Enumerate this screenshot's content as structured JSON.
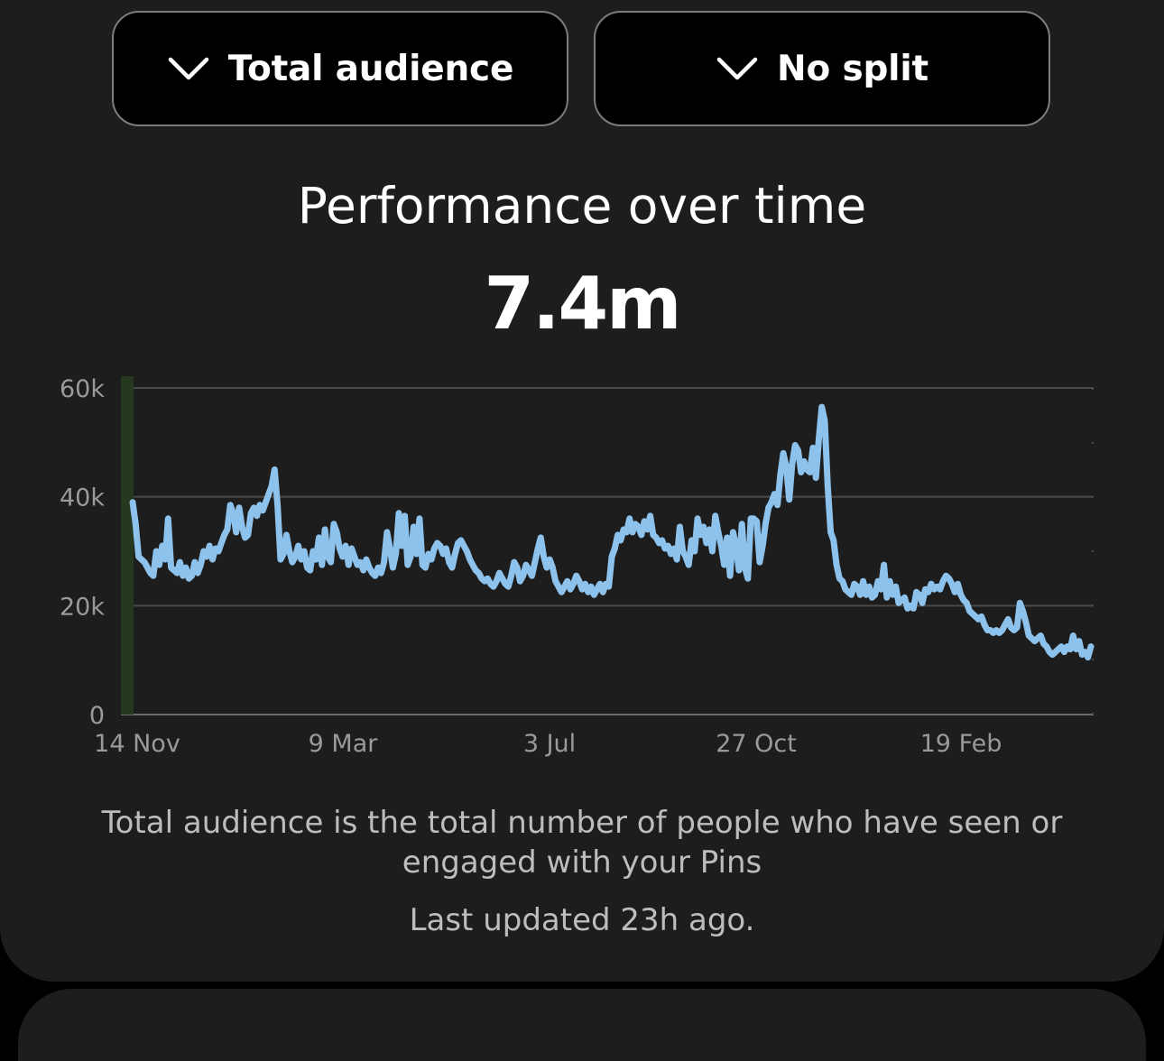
{
  "filters": {
    "audience_label": "Total audience",
    "split_label": "No split",
    "chevron_icon": "chevron-down-icon"
  },
  "summary": {
    "title": "Performance over time",
    "value": "7.4m"
  },
  "chart_data": {
    "type": "line",
    "title": "",
    "xlabel": "",
    "ylabel": "",
    "ylim": [
      0,
      60000
    ],
    "yticks": [
      0,
      20000,
      40000,
      60000
    ],
    "ytick_labels": [
      "0",
      "20k",
      "40k",
      "60k"
    ],
    "xtick_labels": [
      "14 Nov",
      "9 Mar",
      "3 Jul",
      "27 Oct",
      "19 Feb"
    ],
    "grid": true,
    "line_color": "#8dc2ec",
    "highlight_color": "#26381f",
    "series": [
      {
        "values": [
          39000,
          35000,
          29000,
          28500,
          28000,
          27000,
          26000,
          25500,
          30000,
          27500,
          31000,
          28500,
          36000,
          27000,
          26500,
          26000,
          28000,
          25500,
          27000,
          25000,
          25500,
          28000,
          26000,
          27500,
          30000,
          29000,
          31000,
          28500,
          30500,
          30000,
          31500,
          33000,
          34000,
          38500,
          37000,
          33500,
          38000,
          34500,
          32500,
          33000,
          37000,
          38000,
          36500,
          38500,
          37500,
          39000,
          40500,
          42000,
          45000,
          38500,
          28500,
          29500,
          33000,
          30000,
          28000,
          29000,
          31000,
          28500,
          30000,
          27000,
          26500,
          30000,
          28500,
          32500,
          27500,
          34000,
          29000,
          28000,
          35000,
          33500,
          30500,
          29000,
          31000,
          27500,
          30500,
          29000,
          27500,
          28000,
          26500,
          28500,
          27000,
          26000,
          25500,
          27000,
          26000,
          28000,
          33500,
          30500,
          27000,
          29500,
          37000,
          31000,
          36500,
          27500,
          29000,
          34500,
          29500,
          36000,
          27500,
          27000,
          29500,
          28500,
          30500,
          31500,
          31000,
          29500,
          30500,
          28000,
          27000,
          29500,
          31500,
          32000,
          31000,
          30000,
          28500,
          27500,
          26500,
          26000,
          25000,
          24500,
          25000,
          24000,
          23500,
          24500,
          26000,
          25000,
          24000,
          23500,
          25500,
          28000,
          27000,
          24500,
          25500,
          27500,
          26500,
          25500,
          28000,
          30500,
          32500,
          29000,
          27000,
          28500,
          27000,
          24500,
          23500,
          22500,
          23500,
          24500,
          23000,
          24000,
          25500,
          24500,
          23000,
          24000,
          22500,
          23500,
          22000,
          23000,
          24000,
          22500,
          24000,
          23500,
          29000,
          30500,
          33000,
          32000,
          34000,
          33500,
          36000,
          33500,
          35000,
          34500,
          33000,
          35500,
          34000,
          36500,
          33000,
          32500,
          31500,
          32000,
          30500,
          31000,
          29500,
          30500,
          28500,
          34500,
          30000,
          29000,
          27500,
          32000,
          30000,
          36000,
          33000,
          34500,
          31500,
          34000,
          30000,
          36500,
          33500,
          31000,
          27500,
          32500,
          25500,
          33500,
          31000,
          26500,
          35000,
          27000,
          25000,
          36000,
          36000,
          35500,
          28000,
          31000,
          35000,
          38000,
          39000,
          40500,
          38500,
          44000,
          48000,
          45500,
          39500,
          46000,
          49500,
          48500,
          44500,
          46500,
          45000,
          44500,
          49000,
          43500,
          50500,
          56500,
          54000,
          42000,
          33500,
          32000,
          27500,
          25000,
          24500,
          23000,
          22500,
          22000,
          24000,
          23500,
          22000,
          24500,
          22000,
          23500,
          21500,
          22000,
          24500,
          23000,
          27500,
          21500,
          24500,
          22000,
          23500,
          20500,
          21000,
          21500,
          19500,
          20000,
          19500,
          22500,
          22000,
          20500,
          23000,
          22500,
          24000,
          23000,
          23500,
          23000,
          24500,
          25500,
          25000,
          24000,
          22500,
          24000,
          22000,
          21000,
          20500,
          19000,
          18500,
          18000,
          17500,
          18000,
          16500,
          15500,
          15500,
          15000,
          15500,
          15000,
          15500,
          16500,
          17500,
          16000,
          15500,
          16000,
          20500,
          19000,
          17000,
          14500,
          14000,
          13500,
          14000,
          14500,
          13000,
          12500,
          11500,
          11000,
          11500,
          12000,
          12500,
          11500,
          12500,
          12000,
          14500,
          12000,
          13500,
          11000,
          11500,
          10500,
          12500
        ]
      }
    ]
  },
  "footer": {
    "description": "Total audience is the total number of people who have seen or engaged with your Pins",
    "updated": "Last updated 23h ago."
  }
}
